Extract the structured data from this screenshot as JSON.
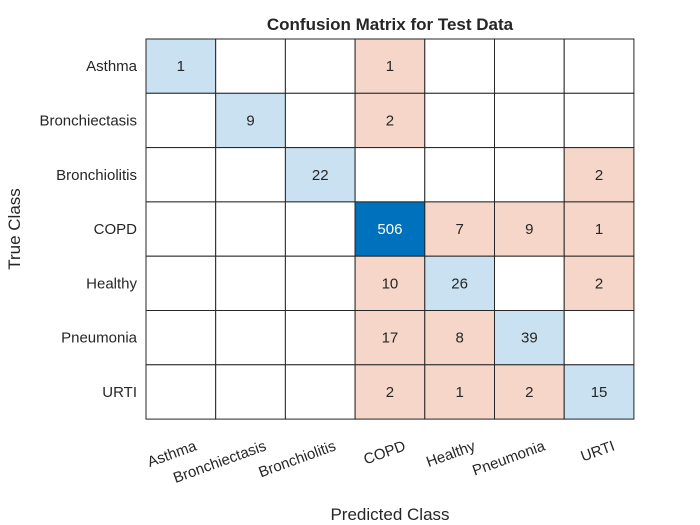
{
  "chart_data": {
    "type": "heatmap",
    "title": "Confusion Matrix for Test Data",
    "xlabel": "Predicted Class",
    "ylabel": "True Class",
    "x_categories": [
      "Asthma",
      "Bronchiectasis",
      "Bronchiolitis",
      "COPD",
      "Healthy",
      "Pneumonia",
      "URTI"
    ],
    "y_categories": [
      "Asthma",
      "Bronchiectasis",
      "Bronchiolitis",
      "COPD",
      "Healthy",
      "Pneumonia",
      "URTI"
    ],
    "matrix": [
      [
        1,
        null,
        null,
        1,
        null,
        null,
        null
      ],
      [
        null,
        9,
        null,
        2,
        null,
        null,
        null
      ],
      [
        null,
        null,
        22,
        null,
        null,
        null,
        2
      ],
      [
        null,
        null,
        null,
        506,
        7,
        9,
        1
      ],
      [
        null,
        null,
        null,
        10,
        26,
        null,
        2
      ],
      [
        null,
        null,
        null,
        17,
        8,
        39,
        null
      ],
      [
        null,
        null,
        null,
        2,
        1,
        2,
        15
      ]
    ],
    "colors": {
      "diagonal_low": "#c9e1f1",
      "diagonal_high": "#0072bd",
      "off_diagonal_low": "#f9ece6",
      "off_diagonal_high": "#f5d6c8",
      "empty": "#ffffff",
      "grid": "#262626",
      "text_dark": "#262626",
      "text_light": "#ffffff"
    }
  }
}
